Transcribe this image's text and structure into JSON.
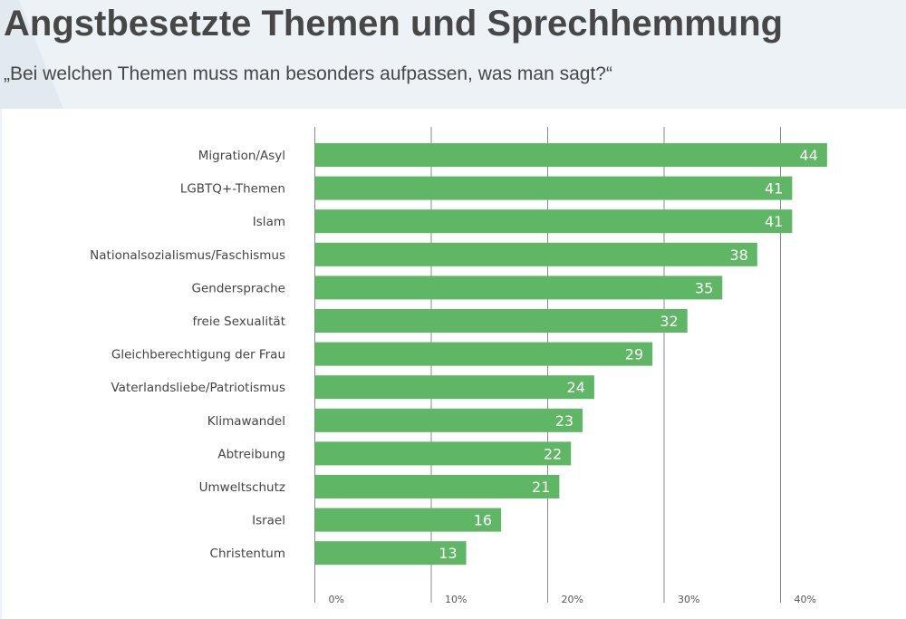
{
  "header": {
    "title": "Angstbesetzte Themen und Sprechhemmung",
    "subtitle": "„Bei welchen Themen muss man besonders aufpassen, was man sagt?“"
  },
  "chart_data": {
    "type": "bar",
    "orientation": "horizontal",
    "categories": [
      "Migration/Asyl",
      "LGBTQ+-Themen",
      "Islam",
      "Nationalsozialismus/Faschismus",
      "Gendersprache",
      "freie Sexualität",
      "Gleichberechtigung der Frau",
      "Vaterlandsliebe/Patriotismus",
      "Klimawandel",
      "Abtreibung",
      "Umweltschutz",
      "Israel",
      "Christentum"
    ],
    "values": [
      44,
      41,
      41,
      38,
      35,
      32,
      29,
      24,
      23,
      22,
      21,
      16,
      13
    ],
    "data_labels": [
      "44",
      "41",
      "41",
      "38",
      "35",
      "32",
      "29",
      "24",
      "23",
      "22",
      "21",
      "16",
      "13"
    ],
    "xlim": [
      0,
      40
    ],
    "x_ticks": [
      "0%",
      "10%",
      "20%",
      "30%",
      "40%"
    ],
    "grid": true,
    "bar_color": "#5fb664",
    "title": "Angstbesetzte Themen und Sprechhemmung",
    "subtitle": "„Bei welchen Themen muss man besonders aufpassen, was man sagt?“"
  }
}
